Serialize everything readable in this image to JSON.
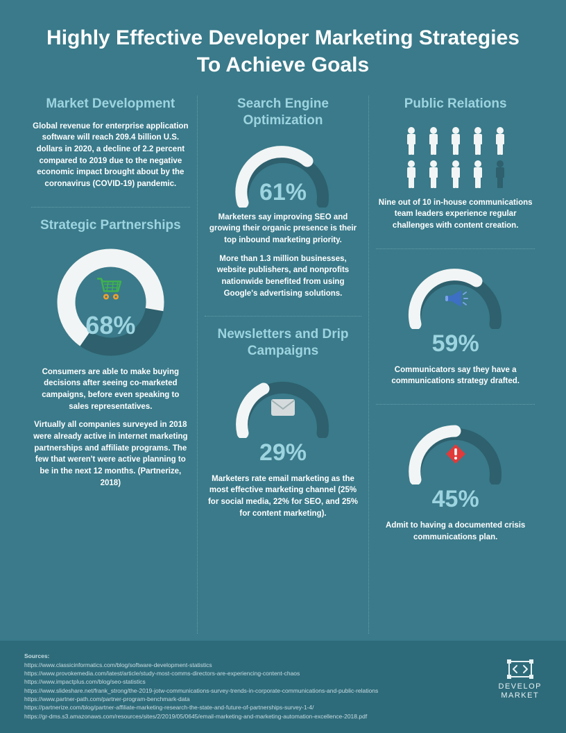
{
  "title": "Highly Effective Developer Marketing Strategies To Achieve Goals",
  "colors": {
    "bg": "#3a7a8a",
    "footer_bg": "#2e6b7a",
    "accent_light": "#9dd4e0",
    "accent_text": "#9dd4e0",
    "gauge_track": "#2e606d",
    "gauge_fill": "#f2f5f5",
    "dotted": "#6aa0ad",
    "person_on": "#f2f5f5",
    "person_off": "#2e606d",
    "cart_green": "#3fb24f",
    "cart_orange": "#f5a128",
    "megaphone_blue": "#3d6fc4",
    "megaphone_light": "#7aa4e6",
    "envelope": "#d5dbdc",
    "alert_red": "#e03a3a"
  },
  "market_development": {
    "title": "Market Development",
    "text": "Global revenue for enterprise application software will reach 209.4 billion U.S. dollars in 2020, a decline of 2.2 percent compared to 2019 due to the negative economic impact brought about by the coronavirus (COVID-19) pandemic."
  },
  "strategic_partnerships": {
    "title": "Strategic Partnerships",
    "gauge": {
      "type": "donut",
      "value": 68,
      "label": "68%",
      "track_color": "#2e606d",
      "fill_color": "#f2f5f5"
    },
    "text1": "Consumers are able to make buying decisions after seeing co-marketed campaigns, before even speaking to sales representatives.",
    "text2": "Virtually all companies surveyed in 2018 were already active in internet marketing partnerships and affiliate programs. The few that weren't were active planning to be in the next 12 months. (Partnerize, 2018)"
  },
  "seo": {
    "title": "Search Engine Optimization",
    "gauge": {
      "type": "semi",
      "value": 61,
      "label": "61%",
      "track_color": "#2e606d",
      "fill_color": "#f2f5f5"
    },
    "text1": "Marketers say improving SEO and growing their organic presence is their top inbound marketing priority.",
    "text2": "More than 1.3 million businesses, website publishers, and nonprofits nationwide benefited from using Google's advertising solutions."
  },
  "newsletters": {
    "title": "Newsletters and Drip Campaigns",
    "gauge": {
      "type": "semi",
      "value": 29,
      "label": "29%",
      "track_color": "#2e606d",
      "fill_color": "#f2f5f5",
      "icon": "envelope"
    },
    "text": "Marketers rate email marketing as the most effective marketing channel (25% for social media, 22% for SEO, and 25% for content marketing)."
  },
  "public_relations": {
    "title": "Public Relations",
    "people": {
      "total": 10,
      "highlighted": 9,
      "on_color": "#f2f5f5",
      "off_color": "#2e606d"
    },
    "text": "Nine out of 10 in-house communications team leaders experience regular challenges with content creation."
  },
  "comms_strategy": {
    "gauge": {
      "type": "semi",
      "value": 59,
      "label": "59%",
      "track_color": "#2e606d",
      "fill_color": "#f2f5f5",
      "icon": "megaphone"
    },
    "text": "Communicators say they have a communications strategy drafted."
  },
  "crisis_plan": {
    "gauge": {
      "type": "semi",
      "value": 45,
      "label": "45%",
      "track_color": "#2e606d",
      "fill_color": "#f2f5f5",
      "icon": "alert"
    },
    "text": "Admit to having a documented crisis communications plan."
  },
  "footer": {
    "sources_label": "Sources:",
    "sources": [
      "https://www.classicinformatics.com/blog/software-development-statistics",
      "https://www.provokemedia.com/latest/article/study-most-comms-directors-are-experiencing-content-chaos",
      "https://www.impactplus.com/blog/seo-statistics",
      "https://www.slideshare.net/frank_strong/the-2019-jotw-communications-survey-trends-in-corporate-communications-and-public-relations",
      "https://www.partner-path.com/partner-program-benchmark-data",
      "https://partnerize.com/blog/partner-affiliate-marketing-research-the-state-and-future-of-partnerships-survey-1-4/",
      "https://gr-dms.s3.amazonaws.com/resources/sites/2/2019/05/0645/email-marketing-and-marketing-automation-excellence-2018.pdf"
    ],
    "logo_line1": "DEVELOP",
    "logo_line2": "MARKET"
  }
}
